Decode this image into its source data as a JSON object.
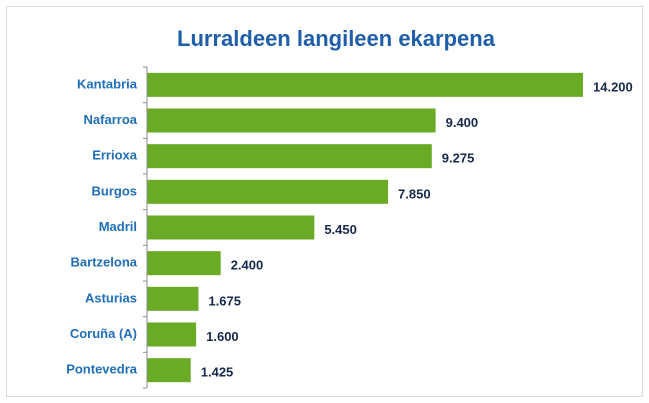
{
  "chart_data": {
    "type": "bar",
    "orientation": "horizontal",
    "title": "Lurraldeen langileen ekarpena",
    "categories": [
      "Kantabria",
      "Nafarroa",
      "Errioxa",
      "Burgos",
      "Madril",
      "Bartzelona",
      "Asturias",
      "Coruña (A)",
      "Pontevedra"
    ],
    "values": [
      14200,
      9400,
      9275,
      7850,
      5450,
      2400,
      1675,
      1600,
      1425
    ],
    "value_labels": [
      "14.200",
      "9.400",
      "9.275",
      "7.850",
      "5.450",
      "2.400",
      "1.675",
      "1.600",
      "1.425"
    ],
    "color": "#6aab26"
  }
}
